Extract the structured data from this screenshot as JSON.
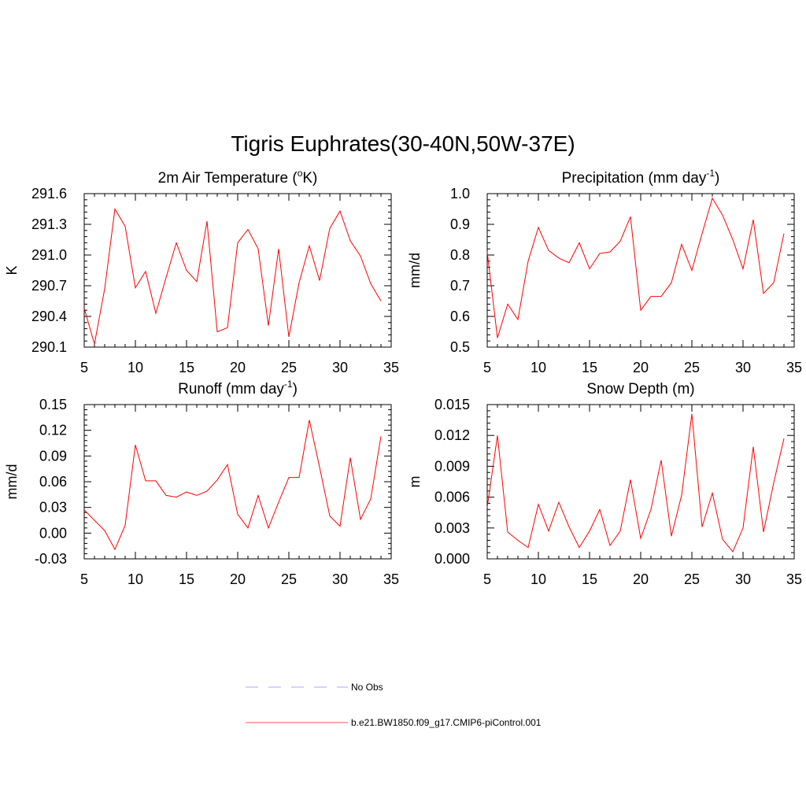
{
  "figure": {
    "title": "Tigris Euphrates(30-40N,50W-37E)"
  },
  "chart_data": [
    {
      "type": "line",
      "title": "2m Air Temperature (oK)",
      "title_parts": [
        "2m Air Temperature (",
        "o",
        "K)"
      ],
      "ylabel": "K",
      "xlim": [
        5,
        35
      ],
      "ylim": [
        290.1,
        291.6
      ],
      "xticks": [
        5,
        10,
        15,
        20,
        25,
        30,
        35
      ],
      "xtick_labels": [
        "5",
        "10",
        "15",
        "20",
        "25",
        "30",
        "35"
      ],
      "yticks": [
        290.1,
        290.4,
        290.7,
        291.0,
        291.3,
        291.6
      ],
      "ytick_labels": [
        "290.1",
        "290.4",
        "290.7",
        "291.0",
        "291.3",
        "291.6"
      ],
      "series": [
        {
          "name": "b.e21.BW1850.f09_g17.CMIP6-piControl.001",
          "color": "#ff0000",
          "x": [
            5,
            6,
            7,
            8,
            9,
            10,
            11,
            12,
            13,
            14,
            15,
            16,
            17,
            18,
            19,
            20,
            21,
            22,
            23,
            24,
            25,
            26,
            27,
            28,
            29,
            30,
            31,
            32,
            33,
            34
          ],
          "values": [
            290.48,
            290.13,
            290.67,
            291.45,
            291.28,
            290.68,
            290.84,
            290.43,
            290.78,
            291.12,
            290.85,
            290.74,
            291.33,
            290.25,
            290.29,
            291.12,
            291.25,
            291.06,
            290.31,
            291.06,
            290.2,
            290.73,
            291.09,
            290.75,
            291.26,
            291.43,
            291.14,
            290.99,
            290.72,
            290.55
          ]
        }
      ]
    },
    {
      "type": "line",
      "title": "Precipitation (mm day-1)",
      "title_parts": [
        "Precipitation (mm day",
        "-1",
        ")"
      ],
      "ylabel": "mm/d",
      "xlim": [
        5,
        35
      ],
      "ylim": [
        0.5,
        1.0
      ],
      "xticks": [
        5,
        10,
        15,
        20,
        25,
        30,
        35
      ],
      "xtick_labels": [
        "5",
        "10",
        "15",
        "20",
        "25",
        "30",
        "35"
      ],
      "yticks": [
        0.5,
        0.6,
        0.7,
        0.8,
        0.9,
        1.0
      ],
      "ytick_labels": [
        "0.5",
        "0.6",
        "0.7",
        "0.8",
        "0.9",
        "1.0"
      ],
      "series": [
        {
          "name": "b.e21.BW1850.f09_g17.CMIP6-piControl.001",
          "color": "#ff0000",
          "x": [
            5,
            6,
            7,
            8,
            9,
            10,
            11,
            12,
            13,
            14,
            15,
            16,
            17,
            18,
            19,
            20,
            21,
            22,
            23,
            24,
            25,
            26,
            27,
            28,
            29,
            30,
            31,
            32,
            33,
            34
          ],
          "values": [
            0.81,
            0.53,
            0.64,
            0.59,
            0.78,
            0.89,
            0.815,
            0.79,
            0.775,
            0.84,
            0.755,
            0.805,
            0.81,
            0.845,
            0.925,
            0.62,
            0.665,
            0.665,
            0.71,
            0.835,
            0.75,
            0.87,
            0.985,
            0.93,
            0.85,
            0.755,
            0.915,
            0.675,
            0.71,
            0.87
          ]
        }
      ]
    },
    {
      "type": "line",
      "title": "Runoff (mm day-1)",
      "title_parts": [
        "Runoff (mm day",
        "-1",
        ")"
      ],
      "ylabel": "mm/d",
      "xlim": [
        5,
        35
      ],
      "ylim": [
        -0.03,
        0.15
      ],
      "xticks": [
        5,
        10,
        15,
        20,
        25,
        30,
        35
      ],
      "xtick_labels": [
        "5",
        "10",
        "15",
        "20",
        "25",
        "30",
        "35"
      ],
      "yticks": [
        -0.03,
        0.0,
        0.03,
        0.06,
        0.09,
        0.12,
        0.15
      ],
      "ytick_labels": [
        "-0.03",
        "0.00",
        "0.03",
        "0.06",
        "0.09",
        "0.12",
        "0.15"
      ],
      "series": [
        {
          "name": "b.e21.BW1850.f09_g17.CMIP6-piControl.001",
          "color": "#ff0000",
          "x": [
            5,
            6,
            7,
            8,
            9,
            10,
            11,
            12,
            13,
            14,
            15,
            16,
            17,
            18,
            19,
            20,
            21,
            22,
            23,
            24,
            25,
            26,
            27,
            28,
            29,
            30,
            31,
            32,
            33,
            34
          ],
          "values": [
            0.027,
            0.015,
            0.003,
            -0.019,
            0.009,
            0.103,
            0.061,
            0.061,
            0.044,
            0.042,
            0.048,
            0.044,
            0.049,
            0.062,
            0.08,
            0.022,
            0.006,
            0.044,
            0.006,
            0.036,
            0.065,
            0.065,
            0.132,
            0.077,
            0.02,
            0.008,
            0.088,
            0.016,
            0.04,
            0.113
          ]
        }
      ]
    },
    {
      "type": "line",
      "title": "Snow Depth (m)",
      "title_parts": [
        "Snow Depth (m)",
        "",
        ""
      ],
      "ylabel": "m",
      "xlim": [
        5,
        35
      ],
      "ylim": [
        0.0,
        0.015
      ],
      "xticks": [
        5,
        10,
        15,
        20,
        25,
        30,
        35
      ],
      "xtick_labels": [
        "5",
        "10",
        "15",
        "20",
        "25",
        "30",
        "35"
      ],
      "yticks": [
        0.0,
        0.003,
        0.006,
        0.009,
        0.012,
        0.015
      ],
      "ytick_labels": [
        "0.000",
        "0.003",
        "0.006",
        "0.009",
        "0.012",
        "0.015"
      ],
      "series": [
        {
          "name": "b.e21.BW1850.f09_g17.CMIP6-piControl.001",
          "color": "#ff0000",
          "x": [
            5,
            6,
            7,
            8,
            9,
            10,
            11,
            12,
            13,
            14,
            15,
            16,
            17,
            18,
            19,
            20,
            21,
            22,
            23,
            24,
            25,
            26,
            27,
            28,
            29,
            30,
            31,
            32,
            33,
            34
          ],
          "values": [
            0.005,
            0.012,
            0.0026,
            0.0018,
            0.0011,
            0.0053,
            0.0027,
            0.0055,
            0.0031,
            0.0011,
            0.0027,
            0.0048,
            0.0013,
            0.0027,
            0.0077,
            0.002,
            0.0048,
            0.0096,
            0.0022,
            0.0062,
            0.0141,
            0.0031,
            0.0064,
            0.0019,
            0.0007,
            0.003,
            0.0109,
            0.0026,
            0.0074,
            0.0117
          ]
        }
      ]
    }
  ],
  "legend": {
    "items": [
      {
        "label": "No Obs",
        "color": "#aaaaff",
        "style": "dashed"
      },
      {
        "label": "b.e21.BW1850.f09_g17.CMIP6-piControl.001",
        "color": "#ff5050",
        "style": "solid"
      }
    ]
  }
}
